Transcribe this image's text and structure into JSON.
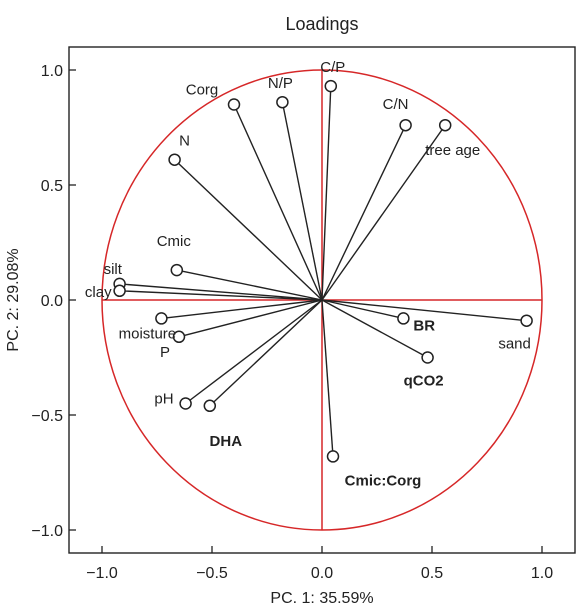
{
  "chart_data": {
    "type": "scatter",
    "title": "Loadings",
    "xlabel": "PC. 1: 35.59%",
    "ylabel": "PC. 2: 29.08%",
    "xlim": [
      -1.15,
      1.15
    ],
    "ylim": [
      -1.1,
      1.1
    ],
    "x_ticks": [
      "−1.0",
      "−0.5",
      "0.0",
      "0.5",
      "1.0"
    ],
    "y_ticks": [
      "−1.0",
      "−0.5",
      "0.0",
      "0.5",
      "1.0"
    ],
    "grid": false,
    "correlation_circle": {
      "radius": 1.0,
      "color": "#d62728"
    },
    "zero_lines_color": "#d62728",
    "vector_color": "#222222",
    "points": [
      {
        "name": "C/P",
        "x": 0.04,
        "y": 0.93,
        "bold": false
      },
      {
        "name": "N/P",
        "x": -0.18,
        "y": 0.86,
        "bold": false
      },
      {
        "name": "Corg",
        "x": -0.4,
        "y": 0.85,
        "bold": false
      },
      {
        "name": "C/N",
        "x": 0.38,
        "y": 0.76,
        "bold": false
      },
      {
        "name": "tree age",
        "x": 0.56,
        "y": 0.76,
        "bold": false
      },
      {
        "name": "N",
        "x": -0.67,
        "y": 0.61,
        "bold": false
      },
      {
        "name": "Cmic",
        "x": -0.66,
        "y": 0.13,
        "bold": false
      },
      {
        "name": "silt",
        "x": -0.92,
        "y": 0.07,
        "bold": false
      },
      {
        "name": "clay",
        "x": -0.92,
        "y": 0.04,
        "bold": false
      },
      {
        "name": "moisture",
        "x": -0.73,
        "y": -0.08,
        "bold": false
      },
      {
        "name": "P",
        "x": -0.65,
        "y": -0.16,
        "bold": false
      },
      {
        "name": "BR",
        "x": 0.37,
        "y": -0.08,
        "bold": true
      },
      {
        "name": "qCO2",
        "x": 0.48,
        "y": -0.25,
        "bold": true
      },
      {
        "name": "sand",
        "x": 0.93,
        "y": -0.09,
        "bold": false
      },
      {
        "name": "pH",
        "x": -0.62,
        "y": -0.45,
        "bold": false
      },
      {
        "name": "DHA",
        "x": -0.51,
        "y": -0.46,
        "bold": true
      },
      {
        "name": "Cmic:Corg",
        "x": 0.05,
        "y": -0.68,
        "bold": true
      }
    ]
  }
}
